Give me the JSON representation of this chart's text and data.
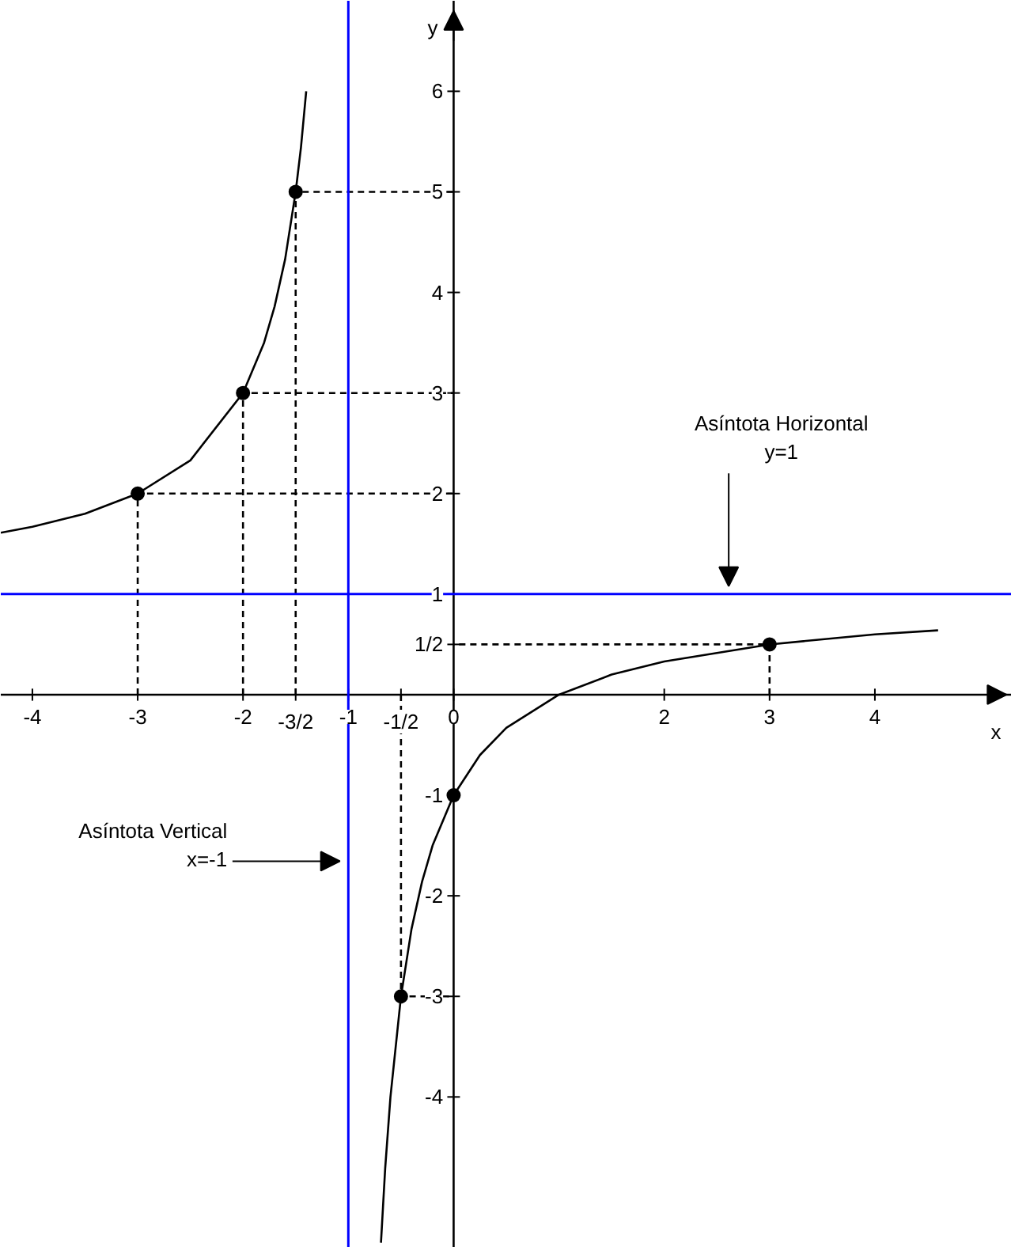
{
  "chart_data": {
    "type": "line",
    "xlabel": "x",
    "ylabel": "y",
    "xlim": [
      -4.3,
      5.3
    ],
    "ylim": [
      -5.5,
      6.9
    ],
    "xticks": [
      -4,
      -3,
      -2,
      {
        "value": -1.5,
        "label": "-3/2"
      },
      -1,
      {
        "value": -0.5,
        "label": "-1/2"
      },
      {
        "value": 0,
        "label": "0"
      },
      2,
      3,
      4
    ],
    "yticks": [
      6,
      5,
      4,
      3,
      2,
      1,
      {
        "value": 0.5,
        "label": "1/2"
      },
      -1,
      -2,
      -3,
      -4
    ],
    "grid": false,
    "series": [
      {
        "color": "#000000",
        "line_style": "solid",
        "x": [
          -4.3,
          -4,
          -3.5,
          -3,
          -2.5,
          -2,
          -1.8,
          -1.7,
          -1.6,
          -1.5,
          -1.45,
          -1.4
        ],
        "values": [
          1.61,
          1.67,
          1.8,
          2,
          2.33,
          3,
          3.5,
          3.86,
          4.33,
          5,
          5.44,
          6
        ]
      },
      {
        "color": "#000000",
        "line_style": "solid",
        "x": [
          -0.69,
          -0.65,
          -0.6,
          -0.5,
          -0.4,
          -0.3,
          -0.2,
          0,
          0.25,
          0.5,
          1,
          1.5,
          2,
          3,
          4,
          4.6
        ],
        "values": [
          -5.45,
          -4.71,
          -4,
          -3,
          -2.33,
          -1.86,
          -1.5,
          -1,
          -0.6,
          -0.33,
          0,
          0.2,
          0.33,
          0.5,
          0.6,
          0.64
        ]
      },
      {
        "type": "line",
        "color": "#000000",
        "line_style": "dashed",
        "x": [
          -3,
          -3,
          0
        ],
        "values": [
          0,
          2,
          2
        ]
      },
      {
        "type": "line",
        "color": "#000000",
        "line_style": "dashed",
        "x": [
          -2,
          -2,
          0
        ],
        "values": [
          0,
          3,
          3
        ]
      },
      {
        "type": "line",
        "color": "#000000",
        "line_style": "dashed",
        "x": [
          -1.5,
          -1.5,
          0
        ],
        "values": [
          0,
          5,
          5
        ]
      },
      {
        "type": "line",
        "color": "#000000",
        "line_style": "dashed",
        "x": [
          -0.5,
          -0.5,
          0
        ],
        "values": [
          0,
          -3,
          -3
        ]
      },
      {
        "type": "line",
        "color": "#000000",
        "line_style": "dashed",
        "x": [
          3,
          3,
          0
        ],
        "values": [
          0,
          0.5,
          0.5
        ]
      },
      {
        "type": "scatter",
        "color": "#000000",
        "marker": "circle",
        "x": [
          -3,
          -2,
          -1.5,
          -0.5,
          0,
          3
        ],
        "values": [
          2,
          3,
          5,
          -3,
          -1,
          0.5
        ]
      }
    ],
    "ref_lines": [
      {
        "axis": "x",
        "value": -1,
        "color": "#0000ff",
        "label": "Asíntota Vertical\nx=-1"
      },
      {
        "axis": "y",
        "value": 1,
        "color": "#0000ff",
        "label": "Asíntota Horizontal\ny=1"
      }
    ]
  }
}
